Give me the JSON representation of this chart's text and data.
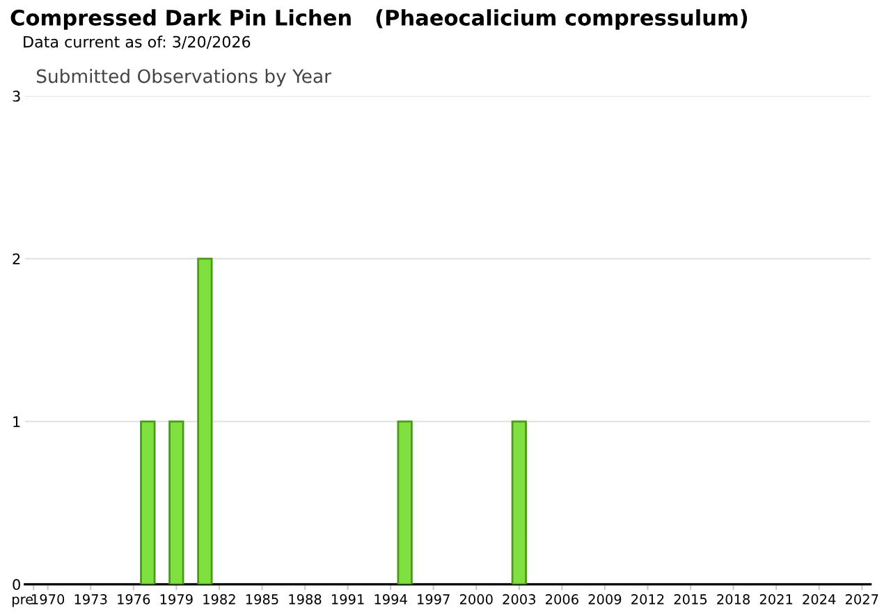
{
  "chart_data": {
    "type": "bar",
    "title": "Compressed Dark Pin Lichen   (Phaeocalicium compressulum)",
    "subtitle": "Data current as of: 3/20/2026",
    "annotations": [
      "Submitted Observations by Year"
    ],
    "categories": [
      "pre",
      "1970",
      null,
      null,
      "1973",
      null,
      null,
      "1976",
      null,
      null,
      "1979",
      null,
      null,
      "1982",
      null,
      null,
      "1985",
      null,
      null,
      "1988",
      null,
      null,
      "1991",
      null,
      null,
      "1994",
      null,
      null,
      "1997",
      null,
      null,
      "2000",
      null,
      null,
      "2003",
      null,
      null,
      "2006",
      null,
      null,
      "2009",
      null,
      null,
      "2012",
      null,
      null,
      "2015",
      null,
      null,
      "2018",
      null,
      null,
      "2021",
      null,
      null,
      "2024",
      null,
      null,
      "2027"
    ],
    "values": [
      0,
      0,
      0,
      0,
      0,
      0,
      0,
      0,
      1,
      0,
      1,
      0,
      2,
      0,
      0,
      0,
      0,
      0,
      0,
      0,
      0,
      0,
      0,
      0,
      0,
      0,
      1,
      0,
      0,
      0,
      0,
      0,
      0,
      0,
      1,
      0,
      0,
      0,
      0,
      0,
      0,
      0,
      0,
      0,
      0,
      0,
      0,
      0,
      0,
      0,
      0,
      0,
      0,
      0,
      0,
      0,
      0,
      0,
      0
    ],
    "color": "#80e040",
    "ylim": [
      0,
      3
    ],
    "yticks": [
      0,
      1,
      2,
      3
    ],
    "grid": "y"
  }
}
